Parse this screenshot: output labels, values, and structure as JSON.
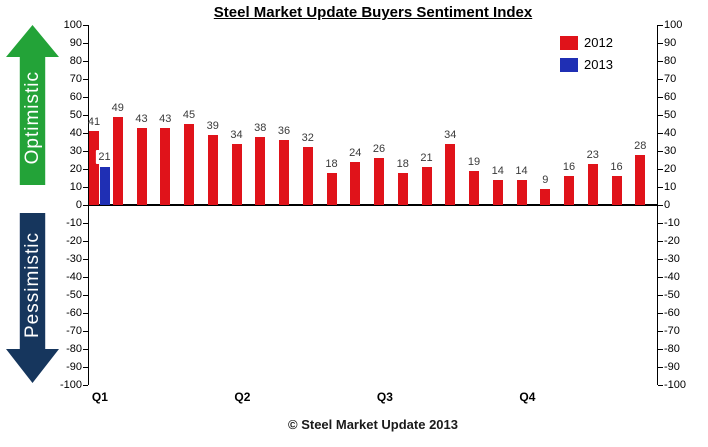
{
  "footer": "© Steel Market Update 2013",
  "arrows": {
    "optimistic": {
      "label": "Optimistic",
      "color": "#23A338"
    },
    "pessimistic": {
      "label": "Pessimistic",
      "color": "#16365D"
    }
  },
  "chart_data": {
    "type": "bar",
    "title": "Steel Market Update Buyers Sentiment Index",
    "xlabel": "",
    "ylabel": "",
    "ylim": [
      -100,
      100
    ],
    "ytick_step": 10,
    "grid": false,
    "legend_position": "top-right",
    "dual_y_axis": true,
    "num_slots": 24,
    "quarter_labels": [
      {
        "label": "Q1",
        "slot": 0
      },
      {
        "label": "Q2",
        "slot": 6
      },
      {
        "label": "Q3",
        "slot": 12
      },
      {
        "label": "Q4",
        "slot": 18
      }
    ],
    "series": [
      {
        "name": "2012",
        "color": "#E0131A",
        "values": [
          41,
          49,
          43,
          43,
          45,
          39,
          34,
          38,
          36,
          32,
          18,
          24,
          26,
          18,
          21,
          34,
          19,
          14,
          14,
          9,
          16,
          23,
          16,
          28
        ]
      },
      {
        "name": "2013",
        "color": "#1F2FB4",
        "values": [
          21,
          null,
          null,
          null,
          null,
          null,
          null,
          null,
          null,
          null,
          null,
          null,
          null,
          null,
          null,
          null,
          null,
          null,
          null,
          null,
          null,
          null,
          null,
          null
        ]
      }
    ]
  }
}
